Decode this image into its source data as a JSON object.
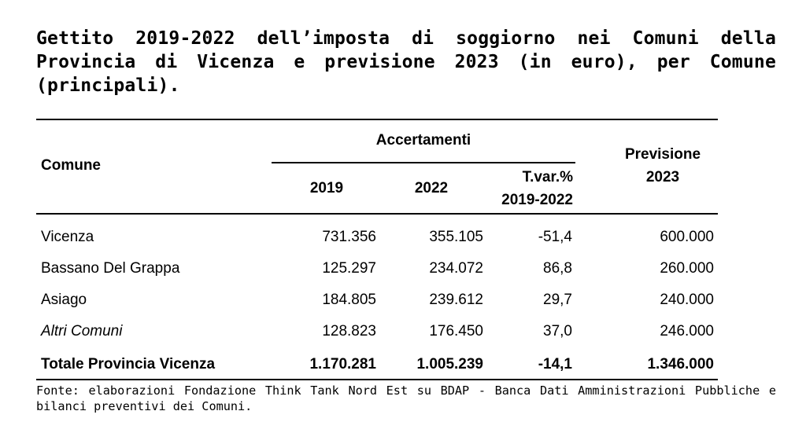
{
  "title": "Gettito 2019-2022 dell’imposta di soggiorno nei Comuni della Provincia di Vicenza e previsione 2023 (in euro), per Comune (principali).",
  "table": {
    "col_comune": "Comune",
    "group_accertamenti": "Accertamenti",
    "col_2019": "2019",
    "col_2022": "2022",
    "col_tvar_line1": "T.var.%",
    "col_tvar_line2": "2019-2022",
    "col_prev_line1": "Previsione",
    "col_prev_line2": "2023",
    "rows": [
      {
        "comune": "Vicenza",
        "y2019": "731.356",
        "y2022": "355.105",
        "tvar": "-51,4",
        "prev": "600.000"
      },
      {
        "comune": "Bassano Del Grappa",
        "y2019": "125.297",
        "y2022": "234.072",
        "tvar": "86,8",
        "prev": "260.000"
      },
      {
        "comune": "Asiago",
        "y2019": "184.805",
        "y2022": "239.612",
        "tvar": "29,7",
        "prev": "240.000"
      },
      {
        "comune": "Altri Comuni",
        "y2019": "128.823",
        "y2022": "176.450",
        "tvar": "37,0",
        "prev": "246.000"
      }
    ],
    "total": {
      "comune": "Totale Provincia Vicenza",
      "y2019": "1.170.281",
      "y2022": "1.005.239",
      "tvar": "-14,1",
      "prev": "1.346.000"
    }
  },
  "source": "Fonte: elaborazioni Fondazione Think Tank Nord Est su BDAP - Banca Dati Amministrazioni Pubbliche e bilanci preventivi dei Comuni."
}
